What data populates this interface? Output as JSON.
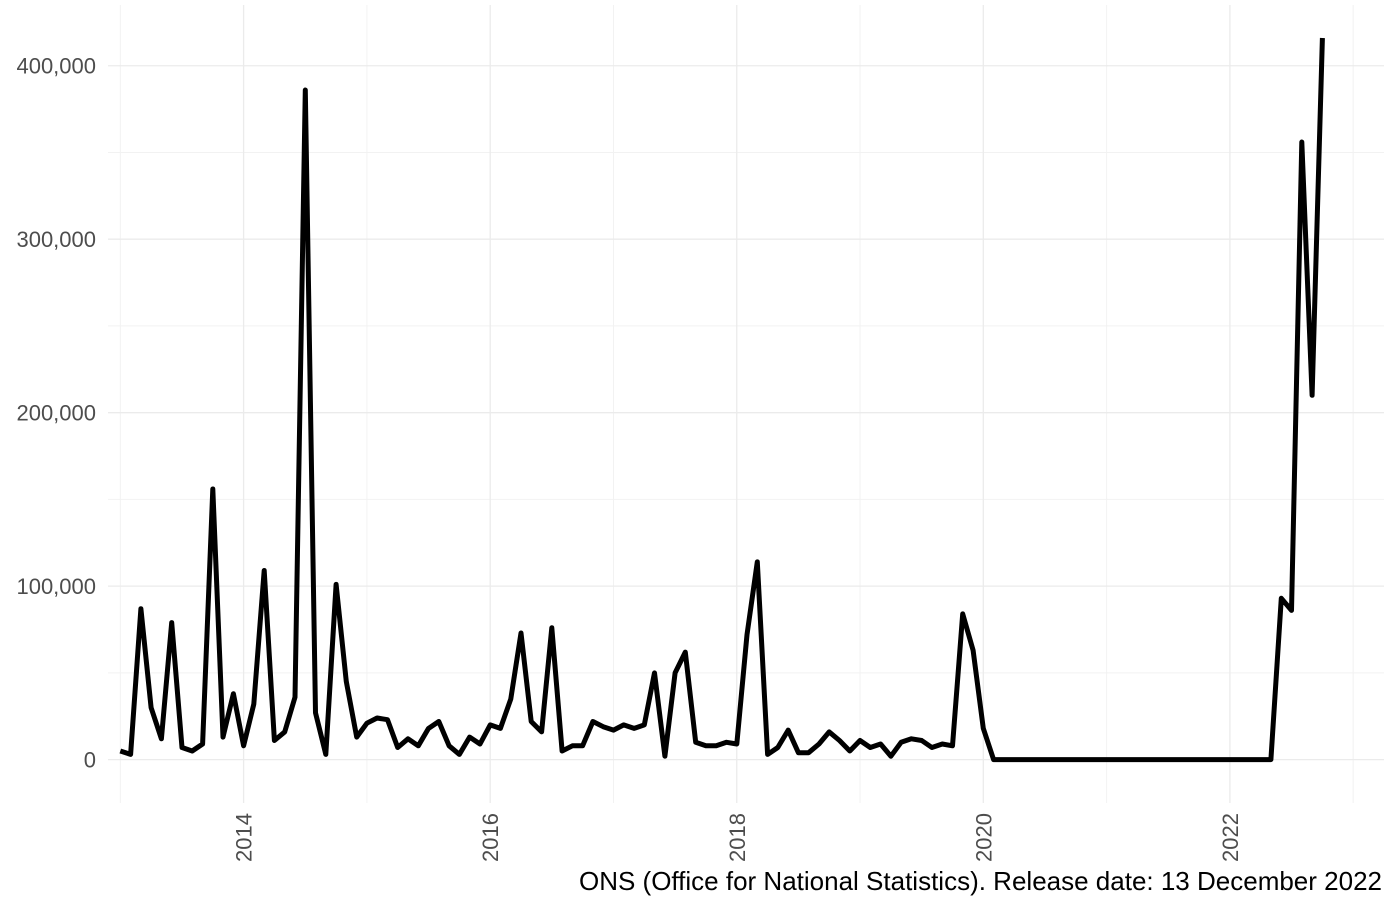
{
  "chart_data": {
    "type": "line",
    "title": "",
    "xlabel": "",
    "ylabel": "",
    "caption": "ONS (Office for National Statistics). Release date: 13 December 2022",
    "grid": true,
    "legend": "none",
    "line_color": "#000000",
    "xlim": [
      2012.9,
      2023.25
    ],
    "ylim": [
      -25000,
      435000
    ],
    "x_ticks": [
      2014,
      2016,
      2018,
      2020,
      2022
    ],
    "x_tick_labels": [
      "2014",
      "2016",
      "2018",
      "2020",
      "2022"
    ],
    "y_ticks": [
      0,
      100000,
      200000,
      300000,
      400000
    ],
    "y_tick_labels": [
      "0",
      "100,000",
      "200,000",
      "300,000",
      "400,000"
    ],
    "series": [
      {
        "x": [
          2013.0,
          2013.083,
          2013.167,
          2013.25,
          2013.333,
          2013.417,
          2013.5,
          2013.583,
          2013.667,
          2013.75,
          2013.833,
          2013.917,
          2014.0,
          2014.083,
          2014.167,
          2014.25,
          2014.333,
          2014.417,
          2014.5,
          2014.583,
          2014.667,
          2014.75,
          2014.833,
          2014.917,
          2015.0,
          2015.083,
          2015.167,
          2015.25,
          2015.333,
          2015.417,
          2015.5,
          2015.583,
          2015.667,
          2015.75,
          2015.833,
          2015.917,
          2016.0,
          2016.083,
          2016.167,
          2016.25,
          2016.333,
          2016.417,
          2016.5,
          2016.583,
          2016.667,
          2016.75,
          2016.833,
          2016.917,
          2017.0,
          2017.083,
          2017.167,
          2017.25,
          2017.333,
          2017.417,
          2017.5,
          2017.583,
          2017.667,
          2017.75,
          2017.833,
          2017.917,
          2018.0,
          2018.083,
          2018.167,
          2018.25,
          2018.333,
          2018.417,
          2018.5,
          2018.583,
          2018.667,
          2018.75,
          2018.833,
          2018.917,
          2019.0,
          2019.083,
          2019.167,
          2019.25,
          2019.333,
          2019.417,
          2019.5,
          2019.583,
          2019.667,
          2019.75,
          2019.833,
          2019.917,
          2020.0,
          2020.083,
          2022.333,
          2022.417,
          2022.5,
          2022.583,
          2022.667,
          2022.75
        ],
        "y": [
          5000,
          3000,
          87000,
          30000,
          12000,
          79000,
          7000,
          5000,
          9000,
          156000,
          13000,
          38000,
          8000,
          32000,
          109000,
          11000,
          16000,
          36000,
          386000,
          27000,
          3000,
          101000,
          45000,
          13000,
          21000,
          24000,
          23000,
          7000,
          12000,
          8000,
          18000,
          22000,
          8000,
          3000,
          13000,
          9000,
          20000,
          18000,
          35000,
          73000,
          22000,
          16000,
          76000,
          5000,
          8000,
          8000,
          22000,
          19000,
          17000,
          20000,
          18000,
          20000,
          50000,
          2000,
          50000,
          62000,
          10000,
          8000,
          8000,
          10000,
          9000,
          72000,
          114000,
          3000,
          7000,
          17000,
          4000,
          4000,
          9000,
          16000,
          11000,
          5000,
          11000,
          7000,
          9000,
          2000,
          10000,
          12000,
          11000,
          7000,
          9000,
          8000,
          84000,
          63000,
          18000,
          0,
          0,
          93000,
          86000,
          356000,
          210000,
          416000
        ]
      }
    ]
  }
}
